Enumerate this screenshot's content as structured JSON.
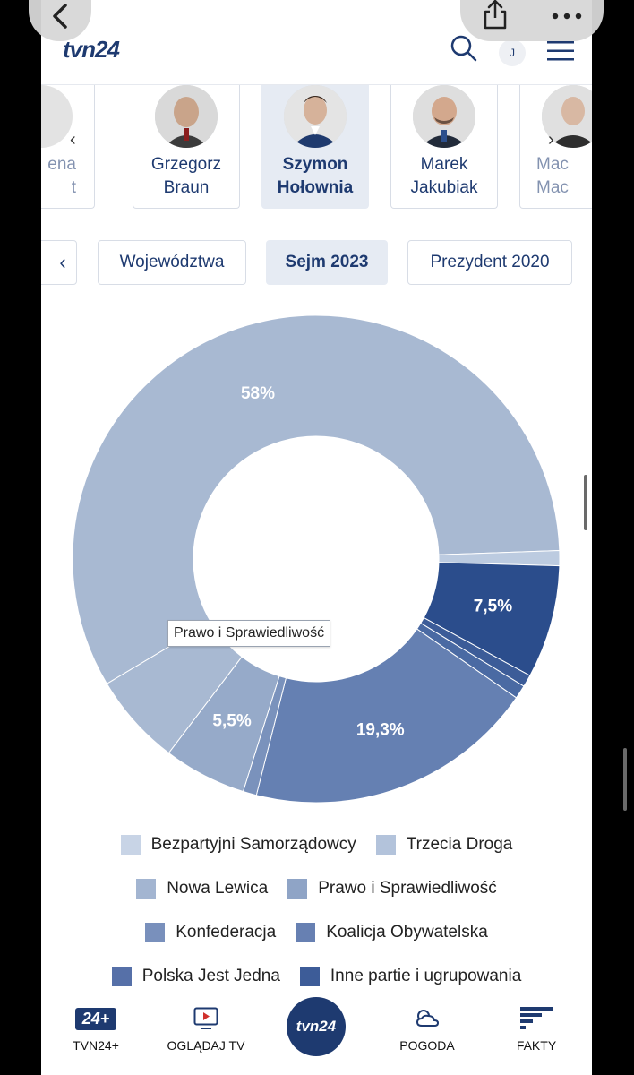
{
  "header": {
    "logo": "tvn24",
    "avatar_initial": "J"
  },
  "candidates": [
    {
      "name_line1": "ena",
      "name_line2": "t"
    },
    {
      "name_line1": "Grzegorz",
      "name_line2": "Braun"
    },
    {
      "name_line1": "Szymon",
      "name_line2": "Hołownia",
      "active": true
    },
    {
      "name_line1": "Marek",
      "name_line2": "Jakubiak"
    },
    {
      "name_line1": "Mac",
      "name_line2": "Mac"
    }
  ],
  "tabs": [
    "Województwa",
    "Sejm 2023",
    "Prezydent 2020"
  ],
  "active_tab": "Sejm 2023",
  "chart_data": {
    "type": "pie",
    "variant": "donut",
    "series": [
      {
        "name": "Prawo i Sprawiedliwość",
        "value": 58.0,
        "color": "#a8b9d2",
        "label": "58%"
      },
      {
        "name": "Bezpartyjni Samorządowcy",
        "value": 1.0,
        "color": "#bccbe0"
      },
      {
        "name": "Inne partie i ugrupowania",
        "value": 7.5,
        "color": "#2b4d8c",
        "label": "7,5%"
      },
      {
        "name": "Polska Jest Jedna",
        "value": 0.8,
        "color": "#3c5c98"
      },
      {
        "name": "Koalicja Obywatelska",
        "value": 0.9,
        "color": "#4a6aa3"
      },
      {
        "name": "Konfederacja",
        "value": 19.3,
        "color": "#6580b2",
        "label": "19,3%"
      },
      {
        "name": "Trzecia Droga",
        "value": 0.9,
        "color": "#7a92bc"
      },
      {
        "name": "Nowa Lewica",
        "value": 5.5,
        "color": "#96aac9",
        "label": "5,5%"
      },
      {
        "name": "Prawo i Sprawiedliwość (2)",
        "value": 6.1,
        "color": "#a8b9d2"
      }
    ],
    "tooltip": "Prawo i Sprawiedliwość",
    "legend_position": "bottom"
  },
  "legend": [
    [
      {
        "label": "Bezpartyjni Samorządowcy",
        "color": "#c8d4e6"
      },
      {
        "label": "Trzecia Droga",
        "color": "#b3c3db"
      }
    ],
    [
      {
        "label": "Nowa Lewica",
        "color": "#a3b5d1"
      },
      {
        "label": "Prawo i Sprawiedliwość",
        "color": "#8fa4c6"
      }
    ],
    [
      {
        "label": "Konfederacja",
        "color": "#7990bc"
      },
      {
        "label": "Koalicja Obywatelska",
        "color": "#6780b2"
      }
    ],
    [
      {
        "label": "Polska Jest Jedna",
        "color": "#5670a8"
      },
      {
        "label": "Inne partie i ugrupowania",
        "color": "#3d5c98"
      }
    ]
  ],
  "bottom_nav": {
    "tvn24plus_badge": "24+",
    "tvn24plus": "TVN24+",
    "ogladaj": "OGLĄDAJ TV",
    "center_logo": "tvn24",
    "pogoda": "POGODA",
    "fakty": "FAKTY"
  }
}
